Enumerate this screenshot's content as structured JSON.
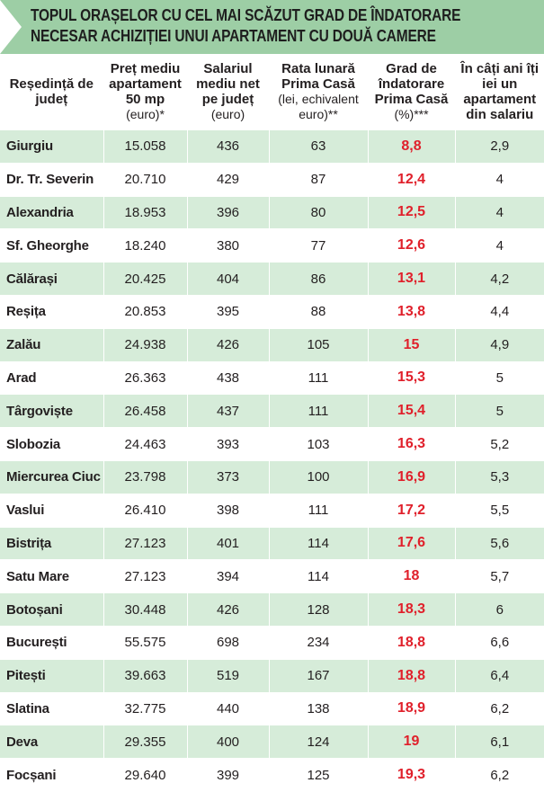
{
  "title": {
    "line1": "TOPUL ORAȘELOR CU CEL MAI SCĂZUT GRAD DE ÎNDATORARE",
    "line2": "NECESAR ACHIZIȚIEI UNUI APARTAMENT CU DOUĂ CAMERE"
  },
  "chart_data": {
    "type": "table",
    "title": "TOPUL ORAȘELOR CU CEL MAI SCĂZUT GRAD DE ÎNDATORARE NECESAR ACHIZIȚIEI UNUI APARTAMENT CU DOUĂ CAMERE",
    "columns": [
      {
        "main": "Reședință de județ",
        "sub": ""
      },
      {
        "main": "Preț mediu apartament 50 mp",
        "sub": "(euro)*"
      },
      {
        "main": "Salariul mediu net pe județ",
        "sub": "(euro)"
      },
      {
        "main": "Rata lunară Prima Casă",
        "sub": "(lei, echivalent euro)**"
      },
      {
        "main": "Grad de îndatorare Prima Casă",
        "sub": "(%)***"
      },
      {
        "main": "În câți ani îți iei un apartament din salariu",
        "sub": ""
      }
    ],
    "rows": [
      [
        "Giurgiu",
        "15.058",
        "436",
        "63",
        "8,8",
        "2,9"
      ],
      [
        "Dr. Tr. Severin",
        "20.710",
        "429",
        "87",
        "12,4",
        "4"
      ],
      [
        "Alexandria",
        "18.953",
        "396",
        "80",
        "12,5",
        "4"
      ],
      [
        "Sf. Gheorghe",
        "18.240",
        "380",
        "77",
        "12,6",
        "4"
      ],
      [
        "Călărași",
        "20.425",
        "404",
        "86",
        "13,1",
        "4,2"
      ],
      [
        "Reșița",
        "20.853",
        "395",
        "88",
        "13,8",
        "4,4"
      ],
      [
        "Zalău",
        "24.938",
        "426",
        "105",
        "15",
        "4,9"
      ],
      [
        "Arad",
        "26.363",
        "438",
        "111",
        "15,3",
        "5"
      ],
      [
        "Târgoviște",
        "26.458",
        "437",
        "111",
        "15,4",
        "5"
      ],
      [
        "Slobozia",
        "24.463",
        "393",
        "103",
        "16,3",
        "5,2"
      ],
      [
        "Miercurea Ciuc",
        "23.798",
        "373",
        "100",
        "16,9",
        "5,3"
      ],
      [
        "Vaslui",
        "26.410",
        "398",
        "111",
        "17,2",
        "5,5"
      ],
      [
        "Bistrița",
        "27.123",
        "401",
        "114",
        "17,6",
        "5,6"
      ],
      [
        "Satu Mare",
        "27.123",
        "394",
        "114",
        "18",
        "5,7"
      ],
      [
        "Botoșani",
        "30.448",
        "426",
        "128",
        "18,3",
        "6"
      ],
      [
        "București",
        "55.575",
        "698",
        "234",
        "18,8",
        "6,6"
      ],
      [
        "Pitești",
        "39.663",
        "519",
        "167",
        "18,8",
        "6,4"
      ],
      [
        "Slatina",
        "32.775",
        "440",
        "138",
        "18,9",
        "6,2"
      ],
      [
        "Deva",
        "29.355",
        "400",
        "124",
        "19",
        "6,1"
      ],
      [
        "Focșani",
        "29.640",
        "399",
        "125",
        "19,3",
        "6,2"
      ]
    ]
  },
  "colors": {
    "title_band": "#9dcea5",
    "row_stripe": "#d6ecd9",
    "highlight_value": "#e0202b"
  }
}
